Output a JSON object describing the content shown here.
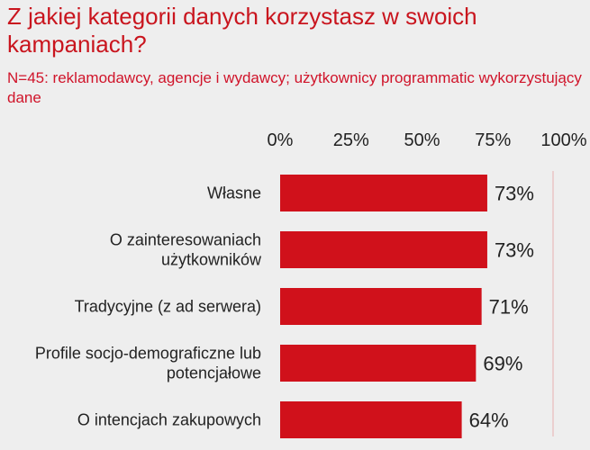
{
  "title": "Z jakiej kategorii danych korzystasz w swoich kampaniach?",
  "subtitle": "N=45: reklamodawcy, agencje i wydawcy; użytkownicy programmatic wykorzystujący dane",
  "colors": {
    "bar": "#d0111b",
    "title": "#c9151e",
    "grid": "#e8b0b0"
  },
  "chart_data": {
    "type": "bar",
    "orientation": "horizontal",
    "title": "Z jakiej kategorii danych korzystasz w swoich kampaniach?",
    "subtitle": "N=45: reklamodawcy, agencje i wydawcy; użytkownicy programmatic wykorzystujący dane",
    "categories": [
      [
        "Własne"
      ],
      [
        "O zainteresowaniach",
        "użytkowników"
      ],
      [
        "Tradycyjne (z ad serwera)"
      ],
      [
        "Profile socjo-demograficzne lub",
        "potencjałowe"
      ],
      [
        "O intencjach zakupowych"
      ]
    ],
    "values": [
      73,
      73,
      71,
      69,
      64
    ],
    "value_labels": [
      "73%",
      "73%",
      "71%",
      "69%",
      "64%"
    ],
    "xticks": [
      0,
      25,
      50,
      75,
      100
    ],
    "xtick_labels": [
      "0%",
      "25%",
      "50%",
      "75%",
      "100%"
    ],
    "xlim": [
      0,
      100
    ],
    "grid": false,
    "legend": "none"
  }
}
